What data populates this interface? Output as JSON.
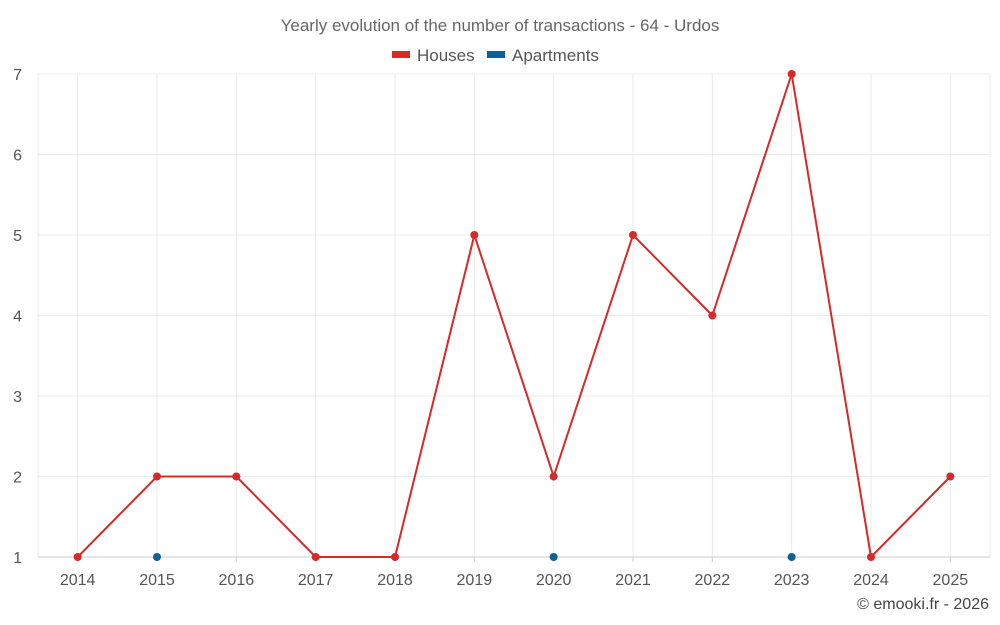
{
  "chart_data": {
    "type": "line",
    "title": "Yearly evolution of the number of transactions - 64 - Urdos",
    "categories": [
      "2014",
      "2015",
      "2016",
      "2017",
      "2018",
      "2019",
      "2020",
      "2021",
      "2022",
      "2023",
      "2024",
      "2025"
    ],
    "series": [
      {
        "name": "Houses",
        "color": "#d42a2a",
        "line": true,
        "values": [
          1,
          2,
          2,
          1,
          1,
          5,
          2,
          5,
          4,
          7,
          1,
          2
        ]
      },
      {
        "name": "Apartments",
        "color": "#0b6296",
        "line": false,
        "values": [
          null,
          1,
          null,
          null,
          null,
          null,
          1,
          null,
          null,
          1,
          null,
          null
        ]
      }
    ],
    "yticks": [
      1,
      2,
      3,
      4,
      5,
      6,
      7
    ],
    "ylim": [
      1,
      7
    ],
    "xlabel": "",
    "ylabel": "",
    "grid": true,
    "legend": "top-center"
  },
  "credit": "© emooki.fr - 2026"
}
